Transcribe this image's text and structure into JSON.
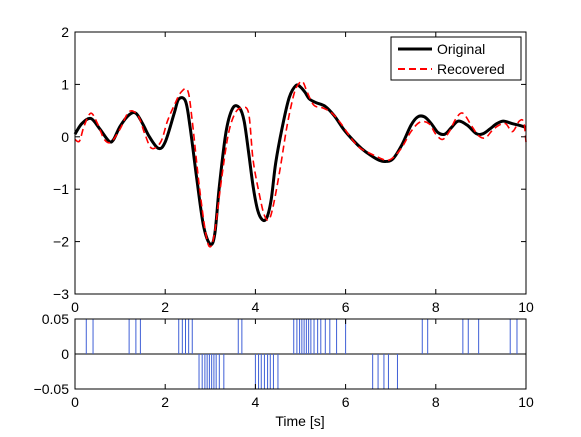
{
  "chart_data": [
    {
      "type": "line",
      "title": "",
      "xlabel": "",
      "ylabel": "",
      "xlim": [
        0,
        10
      ],
      "ylim": [
        -3,
        2
      ],
      "xticks": [
        "0",
        "2",
        "4",
        "6",
        "8",
        "10"
      ],
      "yticks": [
        "2",
        "1",
        "0",
        "−1",
        "−2",
        "−3"
      ],
      "grid": false,
      "legend_position": "top-right",
      "series": [
        {
          "name": "Original",
          "color": "#000000",
          "style": "solid",
          "x": [
            0,
            0.15,
            0.35,
            0.55,
            0.75,
            0.85,
            1.0,
            1.2,
            1.35,
            1.5,
            1.65,
            1.85,
            2.0,
            2.2,
            2.3,
            2.45,
            2.55,
            2.7,
            2.85,
            3.0,
            3.1,
            3.2,
            3.35,
            3.5,
            3.65,
            3.75,
            3.85,
            3.95,
            4.05,
            4.15,
            4.25,
            4.35,
            4.45,
            4.6,
            4.75,
            4.9,
            5.0,
            5.1,
            5.2,
            5.35,
            5.55,
            5.75,
            5.95,
            6.15,
            6.35,
            6.55,
            6.75,
            6.9,
            7.05,
            7.25,
            7.45,
            7.6,
            7.75,
            7.9,
            8.05,
            8.2,
            8.35,
            8.5,
            8.7,
            8.9,
            9.05,
            9.2,
            9.35,
            9.5,
            9.7,
            9.85,
            10.0
          ],
          "values": [
            0.05,
            0.25,
            0.35,
            0.15,
            -0.08,
            -0.06,
            0.2,
            0.42,
            0.45,
            0.25,
            0.0,
            -0.22,
            -0.1,
            0.45,
            0.72,
            0.68,
            0.2,
            -0.8,
            -1.7,
            -2.05,
            -1.85,
            -0.95,
            0.1,
            0.55,
            0.55,
            0.3,
            -0.3,
            -0.95,
            -1.4,
            -1.58,
            -1.55,
            -1.2,
            -0.5,
            0.2,
            0.75,
            0.98,
            0.95,
            0.85,
            0.72,
            0.65,
            0.58,
            0.4,
            0.15,
            -0.05,
            -0.22,
            -0.35,
            -0.45,
            -0.47,
            -0.42,
            -0.15,
            0.22,
            0.38,
            0.38,
            0.25,
            0.08,
            0.05,
            0.18,
            0.3,
            0.22,
            0.06,
            0.06,
            0.15,
            0.25,
            0.3,
            0.25,
            0.22,
            0.18
          ]
        },
        {
          "name": "Recovered",
          "color": "#ff0000",
          "style": "dashed",
          "x": [
            0,
            0.1,
            0.2,
            0.35,
            0.5,
            0.65,
            0.8,
            1.0,
            1.2,
            1.4,
            1.55,
            1.7,
            1.9,
            2.05,
            2.2,
            2.35,
            2.5,
            2.6,
            2.75,
            2.9,
            3.0,
            3.1,
            3.25,
            3.4,
            3.55,
            3.7,
            3.85,
            3.95,
            4.1,
            4.2,
            4.3,
            4.4,
            4.55,
            4.7,
            4.85,
            4.95,
            5.05,
            5.15,
            5.3,
            5.5,
            5.7,
            5.9,
            6.1,
            6.3,
            6.5,
            6.7,
            6.9,
            7.05,
            7.25,
            7.45,
            7.65,
            7.85,
            8.0,
            8.15,
            8.3,
            8.45,
            8.6,
            8.8,
            8.95,
            9.1,
            9.25,
            9.4,
            9.55,
            9.7,
            9.85,
            9.95,
            10.0
          ],
          "values": [
            -0.05,
            -0.08,
            0.2,
            0.45,
            0.25,
            -0.05,
            -0.1,
            0.15,
            0.48,
            0.4,
            0.05,
            -0.22,
            -0.1,
            0.3,
            0.6,
            0.85,
            0.88,
            0.3,
            -0.9,
            -1.85,
            -2.1,
            -1.8,
            -0.8,
            0.05,
            0.45,
            0.55,
            0.45,
            -0.45,
            -1.15,
            -1.5,
            -1.58,
            -1.3,
            -0.6,
            0.2,
            0.8,
            1.0,
            1.05,
            0.85,
            0.6,
            0.55,
            0.45,
            0.25,
            0.0,
            -0.2,
            -0.3,
            -0.38,
            -0.45,
            -0.4,
            -0.2,
            0.1,
            0.28,
            0.25,
            0.05,
            -0.05,
            0.1,
            0.35,
            0.45,
            0.2,
            0.02,
            -0.02,
            0.12,
            0.22,
            0.25,
            0.1,
            0.3,
            0.28,
            -0.1
          ]
        }
      ]
    },
    {
      "type": "bar",
      "title": "",
      "xlabel": "Time [s]",
      "ylabel": "",
      "xlim": [
        0,
        10
      ],
      "ylim": [
        -0.05,
        0.05
      ],
      "xticks": [
        "0",
        "2",
        "4",
        "6",
        "8",
        "10"
      ],
      "yticks": [
        "0.05",
        "0",
        "−0.05"
      ],
      "grid": false,
      "color": "#3f5fd6",
      "spikes": [
        {
          "x": 0.25,
          "value": 0.05
        },
        {
          "x": 0.4,
          "value": 0.05
        },
        {
          "x": 1.2,
          "value": 0.05
        },
        {
          "x": 1.35,
          "value": 0.05
        },
        {
          "x": 1.45,
          "value": 0.05
        },
        {
          "x": 2.3,
          "value": 0.05
        },
        {
          "x": 2.38,
          "value": 0.05
        },
        {
          "x": 2.45,
          "value": 0.05
        },
        {
          "x": 2.52,
          "value": 0.05
        },
        {
          "x": 2.6,
          "value": 0.05
        },
        {
          "x": 2.75,
          "value": -0.05
        },
        {
          "x": 2.82,
          "value": -0.05
        },
        {
          "x": 2.88,
          "value": -0.05
        },
        {
          "x": 2.93,
          "value": -0.05
        },
        {
          "x": 2.98,
          "value": -0.05
        },
        {
          "x": 3.03,
          "value": -0.05
        },
        {
          "x": 3.08,
          "value": -0.05
        },
        {
          "x": 3.13,
          "value": -0.05
        },
        {
          "x": 3.2,
          "value": -0.05
        },
        {
          "x": 3.3,
          "value": -0.05
        },
        {
          "x": 3.62,
          "value": 0.05
        },
        {
          "x": 3.7,
          "value": 0.05
        },
        {
          "x": 4.0,
          "value": -0.05
        },
        {
          "x": 4.07,
          "value": -0.05
        },
        {
          "x": 4.13,
          "value": -0.05
        },
        {
          "x": 4.2,
          "value": -0.05
        },
        {
          "x": 4.27,
          "value": -0.05
        },
        {
          "x": 4.33,
          "value": -0.05
        },
        {
          "x": 4.4,
          "value": -0.05
        },
        {
          "x": 4.5,
          "value": -0.05
        },
        {
          "x": 4.85,
          "value": 0.05
        },
        {
          "x": 4.92,
          "value": 0.05
        },
        {
          "x": 4.98,
          "value": 0.05
        },
        {
          "x": 5.03,
          "value": 0.05
        },
        {
          "x": 5.08,
          "value": 0.05
        },
        {
          "x": 5.13,
          "value": 0.05
        },
        {
          "x": 5.18,
          "value": 0.05
        },
        {
          "x": 5.23,
          "value": 0.05
        },
        {
          "x": 5.3,
          "value": 0.05
        },
        {
          "x": 5.38,
          "value": 0.05
        },
        {
          "x": 5.45,
          "value": 0.05
        },
        {
          "x": 5.55,
          "value": 0.05
        },
        {
          "x": 5.65,
          "value": 0.05
        },
        {
          "x": 5.8,
          "value": 0.05
        },
        {
          "x": 6.0,
          "value": 0.05
        },
        {
          "x": 6.6,
          "value": -0.05
        },
        {
          "x": 6.72,
          "value": -0.05
        },
        {
          "x": 6.85,
          "value": -0.05
        },
        {
          "x": 6.95,
          "value": -0.05
        },
        {
          "x": 7.15,
          "value": -0.05
        },
        {
          "x": 7.7,
          "value": 0.05
        },
        {
          "x": 7.82,
          "value": 0.05
        },
        {
          "x": 8.6,
          "value": 0.05
        },
        {
          "x": 8.72,
          "value": 0.05
        },
        {
          "x": 8.95,
          "value": 0.05
        },
        {
          "x": 9.65,
          "value": 0.05
        },
        {
          "x": 9.8,
          "value": 0.05
        }
      ]
    }
  ]
}
